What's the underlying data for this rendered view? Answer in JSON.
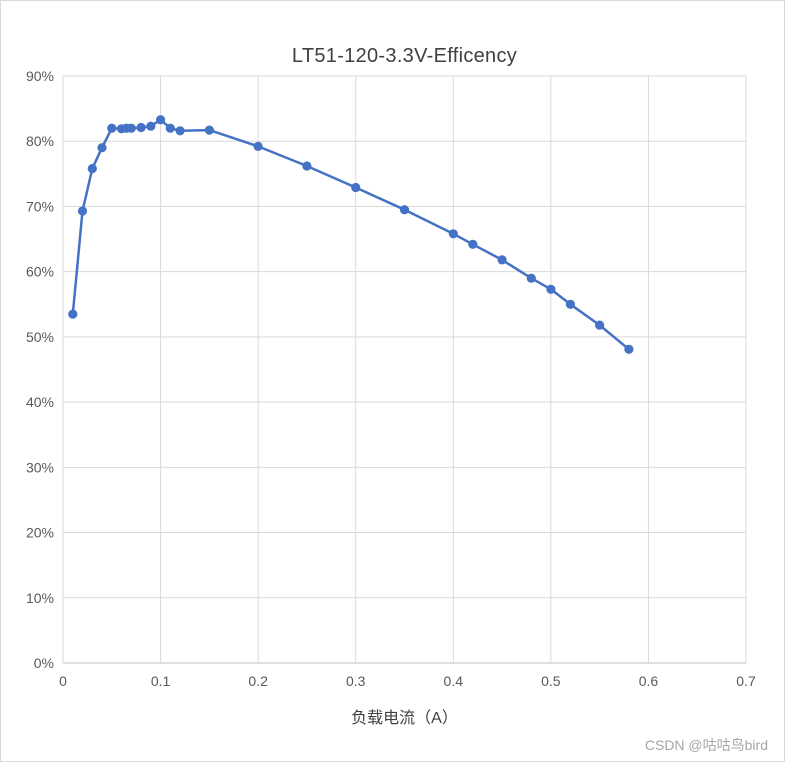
{
  "chart_data": {
    "type": "line",
    "title": "LT51-120-3.3V-Efficency",
    "xlabel": "负载电流（A）",
    "ylabel": "",
    "xlim": [
      0,
      0.7
    ],
    "ylim": [
      0,
      90
    ],
    "x_ticks": [
      0,
      0.1,
      0.2,
      0.3,
      0.4,
      0.5,
      0.6,
      0.7
    ],
    "y_ticks": [
      0,
      10,
      20,
      30,
      40,
      50,
      60,
      70,
      80,
      90
    ],
    "grid": true,
    "legend": "none",
    "colors": {
      "series": "#4472C4",
      "gridline": "#D9D9D9",
      "axis_line": "#BFBFBF",
      "tick_text": "#595959",
      "title_text": "#404040"
    },
    "series": [
      {
        "name": "Efficiency",
        "color": "#4472C4",
        "points": [
          [
            0.01,
            53.5
          ],
          [
            0.02,
            69.3
          ],
          [
            0.03,
            75.8
          ],
          [
            0.04,
            79.0
          ],
          [
            0.05,
            82.0
          ],
          [
            0.06,
            81.9
          ],
          [
            0.065,
            82.0
          ],
          [
            0.07,
            82.0
          ],
          [
            0.08,
            82.1
          ],
          [
            0.09,
            82.3
          ],
          [
            0.1,
            83.3
          ],
          [
            0.11,
            82.0
          ],
          [
            0.12,
            81.6
          ],
          [
            0.15,
            81.7
          ],
          [
            0.2,
            79.2
          ],
          [
            0.25,
            76.2
          ],
          [
            0.3,
            72.9
          ],
          [
            0.35,
            69.5
          ],
          [
            0.4,
            65.8
          ],
          [
            0.42,
            64.2
          ],
          [
            0.45,
            61.8
          ],
          [
            0.48,
            59.0
          ],
          [
            0.5,
            57.3
          ],
          [
            0.52,
            55.0
          ],
          [
            0.55,
            51.8
          ],
          [
            0.58,
            48.1
          ]
        ]
      }
    ]
  },
  "watermark": "CSDN @咕咕鸟bird"
}
